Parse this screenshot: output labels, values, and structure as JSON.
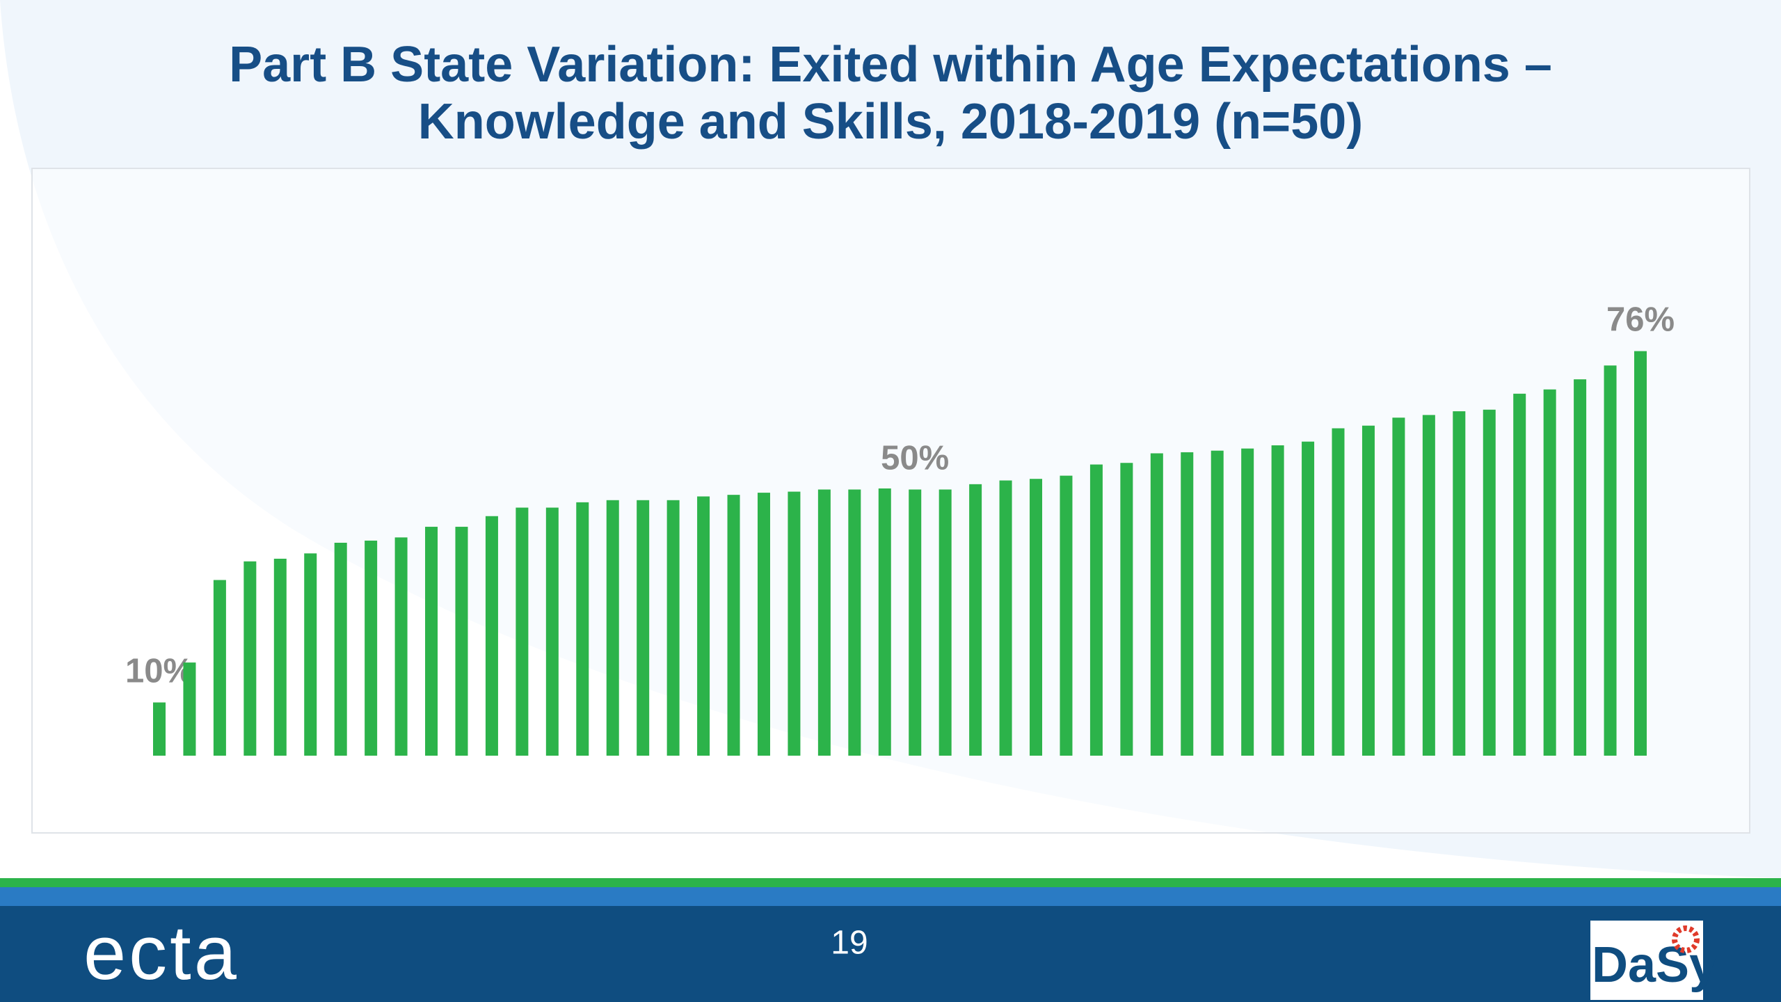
{
  "chart_data": {
    "type": "bar",
    "title": "Part B State Variation: Exited within Age Expectations –",
    "subtitle": "Knowledge and Skills, 2018-2019 (n=50)",
    "color": "#2cb34a",
    "values": [
      10,
      17.5,
      33,
      36.5,
      37,
      38,
      40,
      40.4,
      41,
      43,
      43,
      45,
      46.6,
      46.6,
      47.6,
      48,
      48,
      48,
      48.7,
      49,
      49.4,
      49.6,
      50,
      50,
      50.2,
      50,
      50,
      51,
      51.7,
      52,
      52.6,
      54.7,
      55,
      56.8,
      57,
      57.3,
      57.7,
      58.3,
      59,
      61.5,
      62,
      63.5,
      64,
      64.7,
      65,
      68,
      68.8,
      70.7,
      73.3,
      76
    ],
    "value_labels": [
      "10%",
      null,
      null,
      null,
      null,
      null,
      null,
      null,
      null,
      null,
      null,
      null,
      null,
      null,
      null,
      null,
      null,
      null,
      null,
      null,
      null,
      null,
      null,
      null,
      null,
      "50%",
      null,
      null,
      null,
      null,
      null,
      null,
      null,
      null,
      null,
      null,
      null,
      null,
      null,
      null,
      null,
      null,
      null,
      null,
      null,
      null,
      null,
      null,
      null,
      "76%"
    ]
  },
  "footer": {
    "page_number": "19",
    "logo_left": "ecta",
    "logo_right": "DaSy"
  }
}
